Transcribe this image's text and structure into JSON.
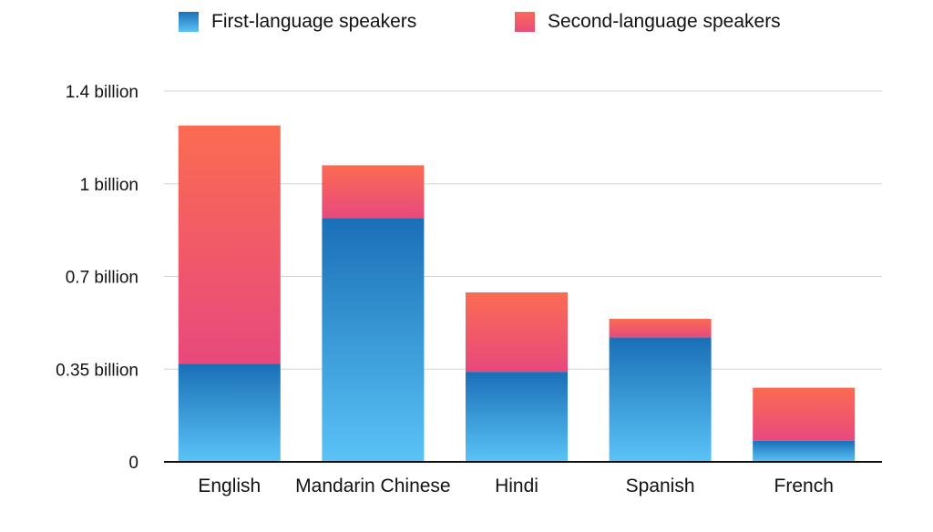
{
  "chart_data": {
    "type": "bar",
    "stacked": true,
    "categories": [
      "English",
      "Mandarin Chinese",
      "Hindi",
      "Spanish",
      "French"
    ],
    "series": [
      {
        "name": "First-language speakers",
        "values": [
          0.37,
          0.92,
          0.34,
          0.47,
          0.08
        ],
        "color": "#1f7fc4"
      },
      {
        "name": "Second-language speakers",
        "values": [
          0.9,
          0.2,
          0.3,
          0.07,
          0.2
        ],
        "color": "#f0556e"
      }
    ],
    "y_ticks": [
      {
        "value": 0,
        "label": "0"
      },
      {
        "value": 0.35,
        "label": "0.35 billion"
      },
      {
        "value": 0.7,
        "label": "0.7 billion"
      },
      {
        "value": 1.05,
        "label": "1 billion"
      },
      {
        "value": 1.4,
        "label": "1.4 billion"
      }
    ],
    "ylim": [
      0,
      1.4
    ],
    "grid": true,
    "legend_position": "top"
  }
}
